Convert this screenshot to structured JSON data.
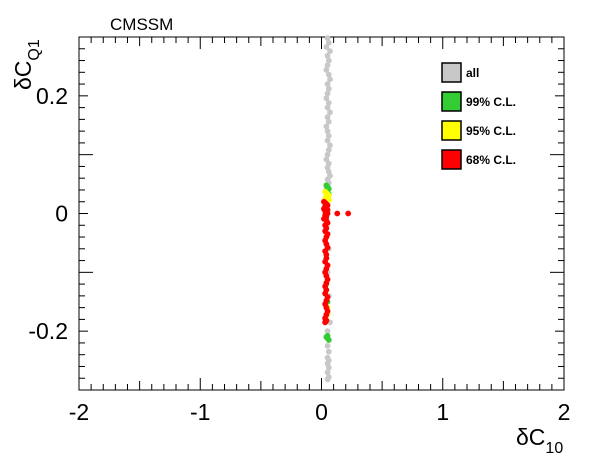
{
  "chart_data": {
    "type": "scatter",
    "title": "CMSSM",
    "xlabel_main": "δC",
    "xlabel_sub": "10",
    "ylabel_main": "δC",
    "ylabel_sub": "Q1",
    "xlim": [
      -2,
      2
    ],
    "ylim": [
      -0.3,
      0.3
    ],
    "xticks": [
      -2,
      -1,
      0,
      1,
      2
    ],
    "xtick_labels": [
      "-2",
      "-1",
      "0",
      "1",
      "2"
    ],
    "yticks": [
      -0.2,
      0,
      0.2
    ],
    "ytick_labels": [
      "-0.2",
      "0",
      "0.2"
    ],
    "grid": false,
    "legend_position": "top-right",
    "series": [
      {
        "name": "all",
        "color": "#c8c8c8",
        "x": [
          0.05,
          0.06,
          0.04,
          0.07,
          0.05,
          0.06,
          0.05,
          0.04,
          0.06,
          0.07,
          0.05,
          0.06,
          0.05,
          0.04,
          0.06,
          0.05,
          0.07,
          0.05,
          0.06,
          0.04,
          0.05,
          0.06,
          0.05,
          0.07,
          0.06,
          0.05,
          0.04,
          0.06,
          0.05,
          0.06,
          0.07,
          0.05,
          0.06,
          0.05,
          0.04,
          0.06,
          0.05,
          0.06,
          0.07,
          0.05,
          0.06,
          0.05,
          0.06,
          0.05,
          0.05,
          0.06,
          0.05,
          0.06,
          0.05,
          0.06
        ],
        "y": [
          0.298,
          0.29,
          0.283,
          0.276,
          0.268,
          0.26,
          0.252,
          0.244,
          0.236,
          0.228,
          0.22,
          0.212,
          0.204,
          0.196,
          0.188,
          0.18,
          0.172,
          0.164,
          0.156,
          0.148,
          0.14,
          0.132,
          0.124,
          0.116,
          0.108,
          0.1,
          0.092,
          0.085,
          0.078,
          0.071,
          0.064,
          0.058,
          0.052,
          0.047,
          0.042,
          -0.06,
          -0.1,
          -0.14,
          -0.185,
          -0.2,
          -0.215,
          -0.225,
          -0.235,
          -0.245,
          -0.255,
          -0.262,
          -0.27,
          -0.278,
          -0.282,
          -0.25
        ]
      },
      {
        "name": "99% C.L.",
        "color": "#33cc33",
        "x": [
          0.04,
          0.05,
          0.06,
          0.05,
          0.04,
          0.06,
          0.05,
          0.04,
          0.05,
          0.06,
          0.04,
          0.05
        ],
        "y": [
          0.048,
          0.045,
          0.042,
          0.038,
          0.036,
          0.033,
          -0.208,
          -0.21,
          -0.212,
          -0.215,
          -0.12,
          -0.15
        ]
      },
      {
        "name": "95% C.L.",
        "color": "#ffff00",
        "x": [
          0.03,
          0.04,
          0.05,
          0.06,
          0.04,
          0.05,
          0.03,
          0.06,
          0.04,
          0.05,
          0.04,
          0.05
        ],
        "y": [
          0.037,
          0.035,
          0.033,
          0.031,
          0.029,
          0.027,
          0.025,
          0.023,
          0.021,
          -0.16,
          -0.18,
          -0.17
        ]
      },
      {
        "name": "68% C.L.",
        "color": "#ff0000",
        "x": [
          0.02,
          0.03,
          0.04,
          0.05,
          0.03,
          0.04,
          0.02,
          0.05,
          0.03,
          0.04,
          0.05,
          0.03,
          0.04,
          0.02,
          0.04,
          0.05,
          0.03,
          0.04,
          0.03,
          0.05,
          0.04,
          0.03,
          0.04,
          0.05,
          0.03,
          0.04,
          0.04,
          0.03,
          0.05,
          0.04,
          0.03,
          0.04,
          0.05,
          0.04,
          0.03,
          0.04,
          0.03,
          0.05,
          0.04,
          0.03,
          0.04,
          0.05,
          0.04,
          0.03,
          0.04,
          0.03,
          0.13,
          0.22
        ],
        "y": [
          0.02,
          0.018,
          0.016,
          0.014,
          0.012,
          0.01,
          0.008,
          0.006,
          0.004,
          0.002,
          0.0,
          -0.003,
          -0.006,
          -0.009,
          -0.012,
          -0.016,
          -0.02,
          -0.025,
          -0.03,
          -0.035,
          -0.04,
          -0.046,
          -0.052,
          -0.058,
          -0.064,
          -0.07,
          -0.076,
          -0.082,
          -0.088,
          -0.094,
          -0.1,
          -0.106,
          -0.112,
          -0.118,
          -0.124,
          -0.13,
          -0.136,
          -0.142,
          -0.148,
          -0.154,
          -0.16,
          -0.166,
          -0.172,
          -0.178,
          -0.182,
          -0.185,
          0.0,
          0.0
        ]
      }
    ]
  }
}
